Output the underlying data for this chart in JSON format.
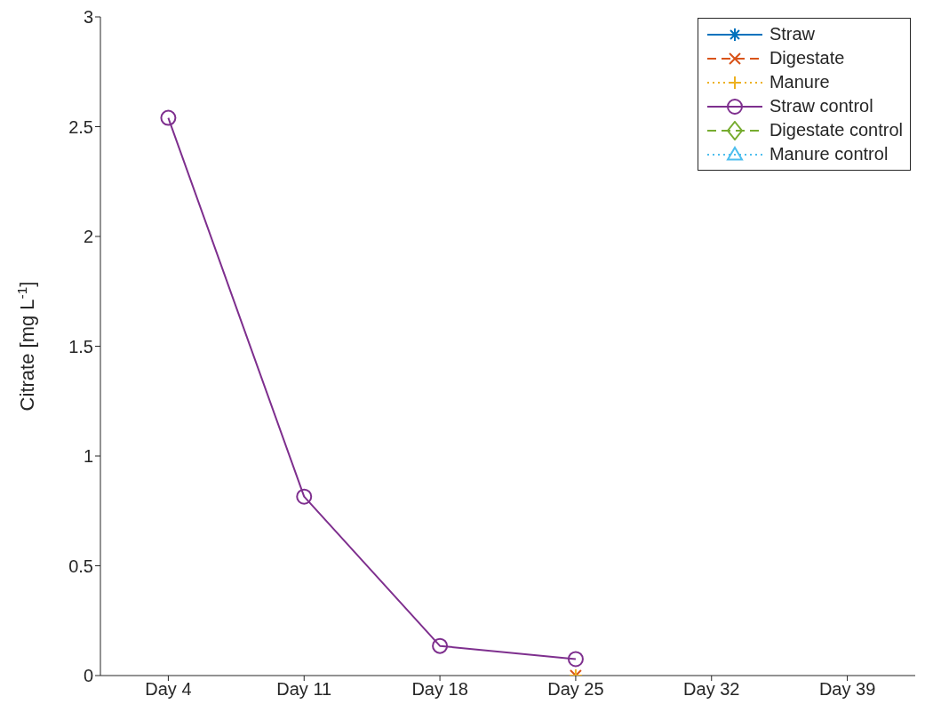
{
  "chart_data": {
    "type": "line",
    "ylabel": "Citrate [mg L$^{-1}$]",
    "categories": [
      "Day 4",
      "Day 11",
      "Day 18",
      "Day 25",
      "Day 32",
      "Day 39"
    ],
    "ylim": [
      0,
      3
    ],
    "yticks": [
      0,
      0.5,
      1,
      1.5,
      2,
      2.5,
      3
    ],
    "grid": false,
    "legend": "top right",
    "series": [
      {
        "name": "Straw",
        "color": "#0072bd",
        "marker": "star",
        "line_style": "solid",
        "values": [
          null,
          null,
          null,
          null,
          null,
          null
        ]
      },
      {
        "name": "Digestate",
        "color": "#d95319",
        "marker": "cross",
        "line_style": "dashed",
        "values": [
          null,
          null,
          null,
          0,
          null,
          null
        ]
      },
      {
        "name": "Manure",
        "color": "#edb120",
        "marker": "plus",
        "line_style": "dotted",
        "values": [
          null,
          null,
          null,
          0,
          null,
          null
        ]
      },
      {
        "name": "Straw control",
        "color": "#7e2f8e",
        "marker": "circle",
        "line_style": "solid",
        "values": [
          2.54,
          0.815,
          0.135,
          0.075,
          null,
          null
        ]
      },
      {
        "name": "Digestate control",
        "color": "#77ac30",
        "marker": "diamond",
        "line_style": "dashed",
        "values": [
          null,
          null,
          null,
          null,
          null,
          null
        ]
      },
      {
        "name": "Manure control",
        "color": "#4dbeee",
        "marker": "triangle",
        "line_style": "dotted",
        "values": [
          null,
          null,
          null,
          null,
          null,
          null
        ]
      }
    ]
  }
}
